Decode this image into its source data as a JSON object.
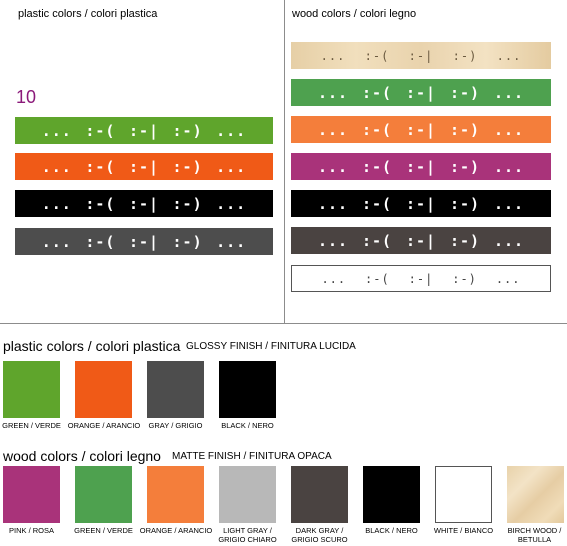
{
  "top": {
    "plastic_title": "plastic colors / colori plastica",
    "wood_title": "wood colors / colori legno",
    "count": "10",
    "symbols": {
      "dots": "...",
      "sad": ":-(",
      "neutral": ":-|",
      "smile": ":-)"
    }
  },
  "plastic_bars": [
    {
      "color": "#5fa52c"
    },
    {
      "color": "#f05a17"
    },
    {
      "color": "#000000"
    },
    {
      "color": "#4d4d4d"
    }
  ],
  "wood_bars": [
    {
      "color": "birch"
    },
    {
      "color": "#4ea14f"
    },
    {
      "color": "#f47e3b"
    },
    {
      "color": "#a9337a"
    },
    {
      "color": "#000000"
    },
    {
      "color": "#4a4341"
    },
    {
      "color": "outline"
    }
  ],
  "plastic_section": {
    "title": "plastic colors / colori plastica",
    "finish": "GLOSSY FINISH / FINITURA LUCIDA",
    "swatches": [
      {
        "label": "GREEN / VERDE",
        "color": "#5fa52c"
      },
      {
        "label": "ORANGE / ARANCIO",
        "color": "#f05a17"
      },
      {
        "label": "GRAY / GRIGIO",
        "color": "#4d4d4d"
      },
      {
        "label": "BLACK / NERO",
        "color": "#000000"
      }
    ]
  },
  "wood_section": {
    "title": "wood colors / colori legno",
    "finish": "MATTE FINISH / FINITURA OPACA",
    "swatches": [
      {
        "label": "PINK / ROSA",
        "color": "#a9337a"
      },
      {
        "label": "GREEN / VERDE",
        "color": "#4ea14f"
      },
      {
        "label": "ORANGE / ARANCIO",
        "color": "#f47e3b"
      },
      {
        "label": "LIGHT GRAY /",
        "label2": "GRIGIO CHIARO",
        "color": "#b8b8b8"
      },
      {
        "label": "DARK GRAY /",
        "label2": "GRIGIO SCURO",
        "color": "#4a4341"
      },
      {
        "label": "BLACK / NERO",
        "color": "#000000"
      },
      {
        "label": "WHITE / BIANCO",
        "color": "#ffffff"
      },
      {
        "label": "BIRCH WOOD /",
        "label2": "BETULLA",
        "color": "birch"
      }
    ]
  }
}
